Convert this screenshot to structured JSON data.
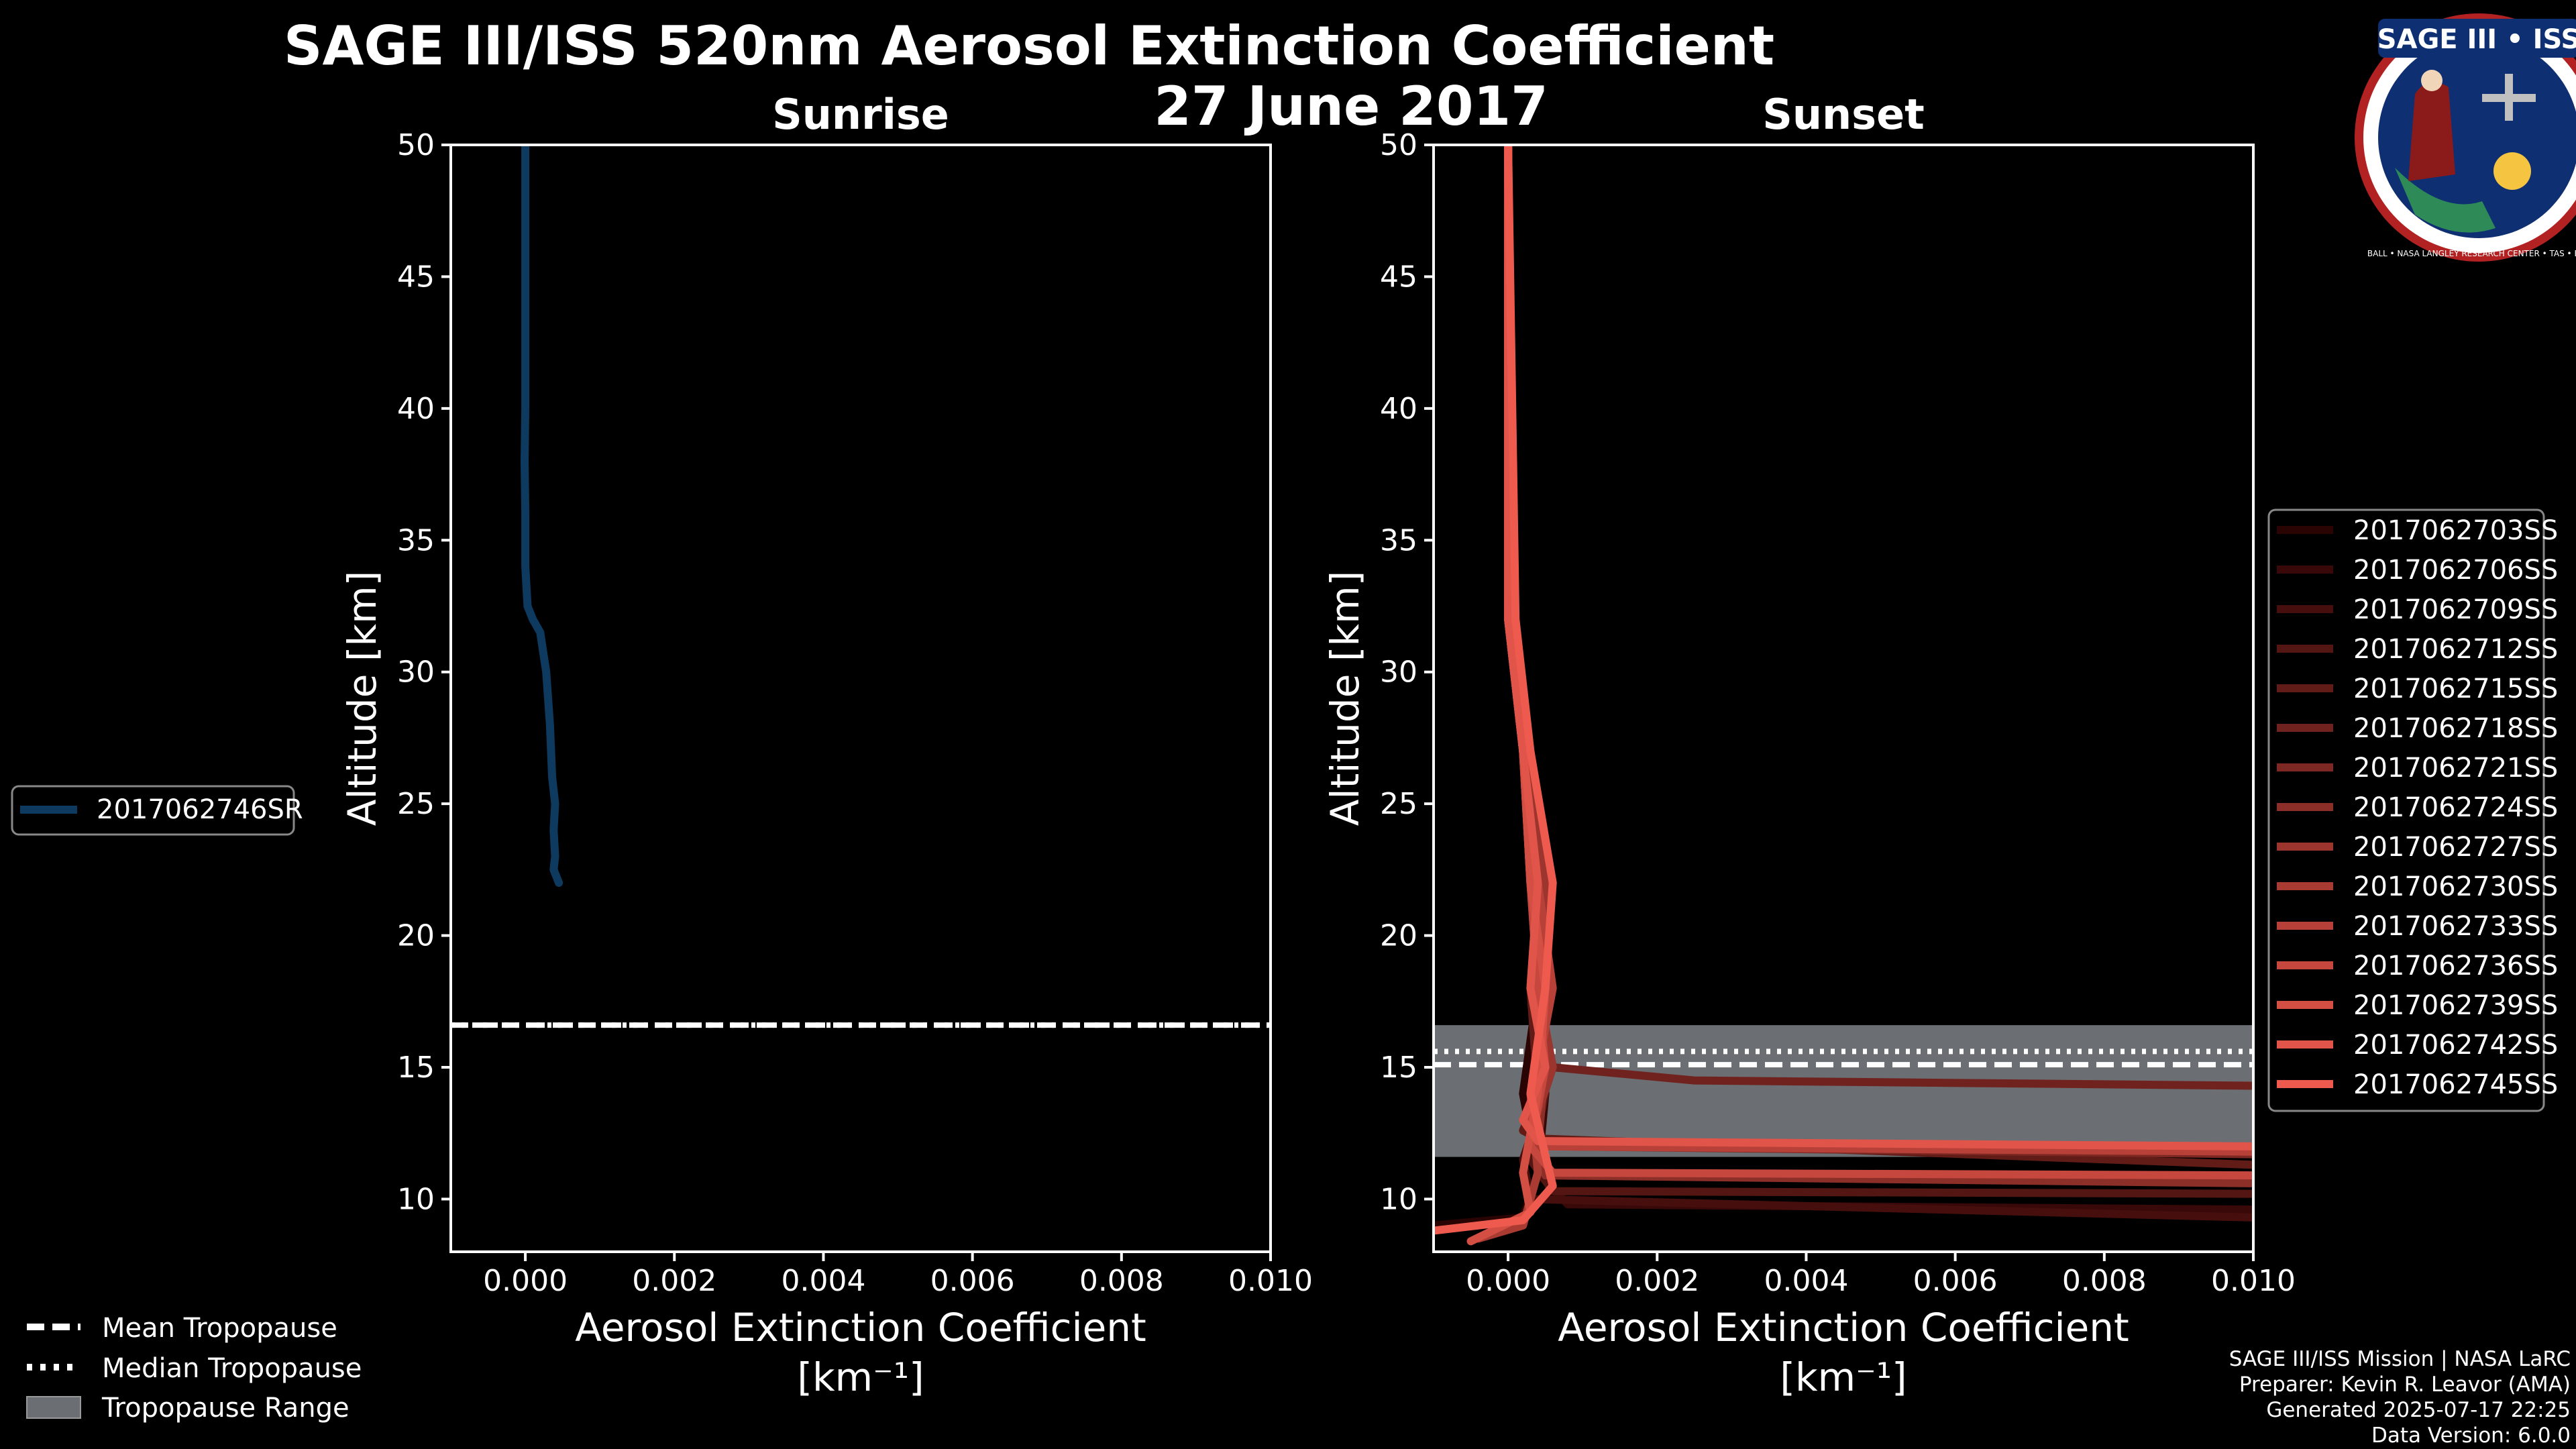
{
  "header": {
    "title": "SAGE III/ISS 520nm Aerosol Extinction Coefficient",
    "date": "27 June 2017"
  },
  "logo": {
    "text": "SAGE III • ISS",
    "ring_text": "BALL • NASA LANGLEY RESEARCH CENTER • TAS • ESA"
  },
  "colors": {
    "background": "#000000",
    "sunrise_line": "#0d3a5e",
    "sunset_light": "#ef5a4e",
    "sunset_dark": "#2a0303",
    "tropopause_range": "#6b6e72",
    "axis": "#ffffff"
  },
  "axis_labels": {
    "xlabel_line1": "Aerosol Extinction Coefficient",
    "xlabel_line2": "[km⁻¹]",
    "ylabel": "Altitude [km]"
  },
  "sunrise_legend": {
    "label": "2017062746SR"
  },
  "tropopause_legend": {
    "mean": "Mean Tropopause",
    "median": "Median Tropopause",
    "range": "Tropopause Range"
  },
  "footer": {
    "line1": "SAGE III/ISS Mission | NASA LaRC",
    "line2": "Preparer: Kevin R. Leavor (AMA)",
    "line3": "Generated 2025-07-17 22:25",
    "line4": "Data Version: 6.0.0"
  },
  "chart_data": [
    {
      "type": "line",
      "title": "Sunrise",
      "xlabel": "Aerosol Extinction Coefficient [km⁻¹]",
      "ylabel": "Altitude [km]",
      "xlim": [
        -0.001,
        0.01
      ],
      "ylim": [
        8,
        50
      ],
      "xticks": [
        "0.000",
        "0.002",
        "0.004",
        "0.006",
        "0.008",
        "0.010"
      ],
      "xtick_values": [
        0,
        0.002,
        0.004,
        0.006,
        0.008,
        0.01
      ],
      "yticks": [
        10,
        15,
        20,
        25,
        30,
        35,
        40,
        45,
        50
      ],
      "tropopause": {
        "mean": 16.6,
        "median": 16.6,
        "range": [
          16.6,
          16.6
        ]
      },
      "series": [
        {
          "name": "2017062746SR",
          "x": [
            0.00045,
            0.00038,
            0.0004,
            0.00038,
            0.0004,
            0.00036,
            0.00033,
            0.00028,
            0.0002,
            0.0001,
            3e-05,
            0.0,
            0.0,
            -1e-05,
            0.0,
            0.0,
            0.0,
            0.0
          ],
          "y": [
            22,
            22.5,
            23,
            24,
            25,
            26,
            28,
            30,
            31.5,
            32,
            32.5,
            34,
            36,
            38,
            40,
            44,
            47,
            50
          ]
        }
      ]
    },
    {
      "type": "line",
      "title": "Sunset",
      "xlabel": "Aerosol Extinction Coefficient [km⁻¹]",
      "ylabel": "Altitude [km]",
      "xlim": [
        -0.001,
        0.01
      ],
      "ylim": [
        8,
        50
      ],
      "xticks": [
        "0.000",
        "0.002",
        "0.004",
        "0.006",
        "0.008",
        "0.010"
      ],
      "xtick_values": [
        0,
        0.002,
        0.004,
        0.006,
        0.008,
        0.01
      ],
      "yticks": [
        10,
        15,
        20,
        25,
        30,
        35,
        40,
        45,
        50
      ],
      "tropopause": {
        "mean": 15.1,
        "median": 15.6,
        "range": [
          11.6,
          16.6
        ]
      },
      "series": [
        {
          "name": "2017062703SS",
          "x": [
            -0.001,
            0.0002,
            0.0004,
            0.0002,
            0.0004,
            0.0003,
            0.0002,
            0.0,
            0.0
          ],
          "y": [
            9.0,
            9.3,
            11,
            14,
            18,
            22,
            27,
            32,
            50
          ]
        },
        {
          "name": "2017062706SS",
          "x": [
            0.01,
            0.0008,
            0.0004,
            0.0005,
            0.0003,
            0.0004,
            0.0002,
            0.0,
            0.0
          ],
          "y": [
            9.6,
            9.8,
            11,
            14,
            18,
            22,
            27,
            32,
            50
          ]
        },
        {
          "name": "2017062709SS",
          "x": [
            0.01,
            0.0003,
            0.0002,
            0.0005,
            0.0003,
            0.0005,
            0.0002,
            0.0,
            0.0
          ],
          "y": [
            9.3,
            10.0,
            11.5,
            14,
            18,
            22,
            27,
            32,
            50
          ]
        },
        {
          "name": "2017062712SS",
          "x": [
            0.01,
            0.0006,
            0.0003,
            0.0005,
            0.0004,
            0.0003,
            0.0002,
            0.0,
            0.0
          ],
          "y": [
            10.2,
            10.3,
            11.5,
            14,
            18,
            22,
            27,
            32,
            50
          ]
        },
        {
          "name": "2017062715SS",
          "x": [
            0.01,
            0.0004,
            0.0002,
            0.0004,
            0.0003,
            0.0004,
            0.0002,
            0.0,
            0.0
          ],
          "y": [
            11.3,
            12.3,
            12.6,
            14,
            18,
            22,
            27,
            32,
            50
          ]
        },
        {
          "name": "2017062718SS",
          "x": [
            0.01,
            0.0025,
            0.0006,
            0.0004,
            0.0005,
            0.0004,
            0.0002,
            0.0,
            0.0
          ],
          "y": [
            14.3,
            14.5,
            15.0,
            15.5,
            18,
            22,
            27,
            32,
            50
          ]
        },
        {
          "name": "2017062721SS",
          "x": [
            0.01,
            0.0007,
            0.0003,
            0.0006,
            0.0004,
            0.0003,
            0.0002,
            0.0,
            0.0
          ],
          "y": [
            11.7,
            12.0,
            12.4,
            15,
            18,
            22,
            27,
            32,
            50
          ]
        },
        {
          "name": "2017062724SS",
          "x": [
            0.01,
            0.0005,
            0.0004,
            0.0005,
            0.0003,
            0.0004,
            0.0002,
            0.0,
            0.0
          ],
          "y": [
            10.6,
            10.9,
            12,
            15,
            18,
            22,
            27,
            32,
            50
          ]
        },
        {
          "name": "2017062727SS",
          "x": [
            0.01,
            0.0004,
            0.0003,
            0.0006,
            0.0004,
            0.0005,
            0.0002,
            0.0,
            0.0
          ],
          "y": [
            11.9,
            12.1,
            12.5,
            15,
            18,
            22,
            27,
            32,
            50
          ]
        },
        {
          "name": "2017062730SS",
          "x": [
            -0.0004,
            0.0002,
            0.0004,
            0.0003,
            0.0005,
            0.0003,
            0.0002,
            0.0,
            0.0
          ],
          "y": [
            8.5,
            9,
            11,
            14,
            18,
            22,
            27,
            32,
            50
          ]
        },
        {
          "name": "2017062733SS",
          "x": [
            0.01,
            0.0005,
            0.0003,
            0.0004,
            0.0006,
            0.0004,
            0.0002,
            0.0,
            0.0
          ],
          "y": [
            11.8,
            12.0,
            13,
            15,
            18,
            22,
            27,
            32,
            50
          ]
        },
        {
          "name": "2017062736SS",
          "x": [
            0.01,
            0.0006,
            0.0003,
            0.0005,
            0.0004,
            0.0003,
            0.0002,
            0.0,
            0.0
          ],
          "y": [
            10.9,
            11.0,
            12,
            15,
            18,
            22,
            27,
            32,
            50
          ]
        },
        {
          "name": "2017062739SS",
          "x": [
            -0.0005,
            0.0003,
            0.0002,
            0.0004,
            0.0005,
            0.0003,
            0.0002,
            0.0,
            0.0
          ],
          "y": [
            8.4,
            9.5,
            11,
            14,
            18,
            22,
            27,
            32,
            50
          ]
        },
        {
          "name": "2017062742SS",
          "x": [
            0.01,
            0.0004,
            0.0002,
            0.0005,
            0.0003,
            0.0004,
            0.0002,
            0.0,
            0.0
          ],
          "y": [
            12.0,
            12.2,
            13,
            15,
            18,
            22,
            27,
            32,
            50
          ]
        },
        {
          "name": "2017062745SS",
          "x": [
            -0.001,
            0.0002,
            0.0006,
            0.0003,
            0.0005,
            0.0006,
            0.0003,
            0.0001,
            0.0
          ],
          "y": [
            8.8,
            9.2,
            10.5,
            14,
            18,
            22,
            27,
            32,
            50
          ]
        }
      ]
    }
  ]
}
